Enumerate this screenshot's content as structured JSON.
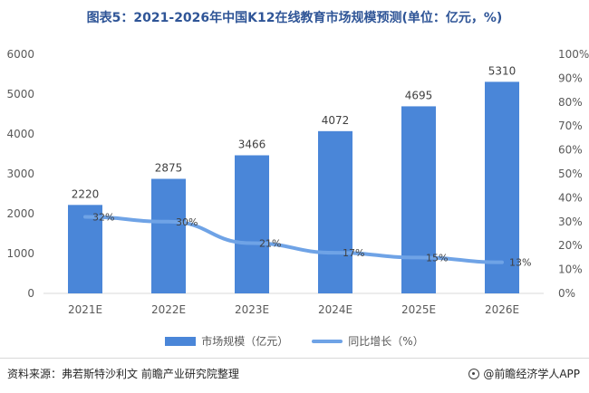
{
  "title": "图表5：2021-2026年中国K12在线教育市场规模预测(单位：亿元，%)",
  "chart_data": {
    "type": "bar",
    "categories": [
      "2021E",
      "2022E",
      "2023E",
      "2024E",
      "2025E",
      "2026E"
    ],
    "series": [
      {
        "name": "市场规模（亿元）",
        "type": "bar",
        "axis": "left",
        "values": [
          2220,
          2875,
          3466,
          4072,
          4695,
          5310
        ],
        "labels": [
          "2220",
          "2875",
          "3466",
          "4072",
          "4695",
          "5310"
        ]
      },
      {
        "name": "同比增长（%）",
        "type": "line",
        "axis": "right",
        "values": [
          32,
          30,
          21,
          17,
          15,
          13
        ],
        "labels": [
          "32%",
          "30%",
          "21%",
          "17%",
          "15%",
          "13%"
        ]
      }
    ],
    "y_left": {
      "min": 0,
      "max": 6000,
      "ticks": [
        "0",
        "1000",
        "2000",
        "3000",
        "4000",
        "5000",
        "6000"
      ]
    },
    "y_right": {
      "min": 0,
      "max": 100,
      "ticks": [
        "0%",
        "10%",
        "20%",
        "30%",
        "40%",
        "50%",
        "60%",
        "70%",
        "80%",
        "90%",
        "100%"
      ]
    },
    "grid": false,
    "legend_position": "bottom",
    "colors": {
      "bar": "#4a86d8",
      "line": "#6fa3e6"
    }
  },
  "source": "资料来源：弗若斯特沙利文 前瞻产业研究院整理",
  "brand": "@前瞻经济学人APP"
}
